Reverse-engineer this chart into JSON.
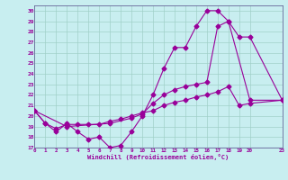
{
  "xlabel": "Windchill (Refroidissement éolien,°C)",
  "bg_color": "#c8eef0",
  "grid_color": "#a0d0c8",
  "line_color": "#990099",
  "xlim": [
    0,
    23
  ],
  "ylim": [
    17,
    30.5
  ],
  "xticks": [
    0,
    1,
    2,
    3,
    4,
    5,
    6,
    7,
    8,
    9,
    10,
    11,
    12,
    13,
    14,
    15,
    16,
    17,
    18,
    19,
    20,
    23
  ],
  "yticks": [
    17,
    18,
    19,
    20,
    21,
    22,
    23,
    24,
    25,
    26,
    27,
    28,
    29,
    30
  ],
  "line1_x": [
    0,
    1,
    2,
    3,
    4,
    5,
    6,
    7,
    8,
    9,
    10,
    11,
    12,
    13,
    14,
    15,
    16,
    17,
    18,
    19,
    20,
    23
  ],
  "line1_y": [
    20.5,
    19.3,
    18.5,
    19.3,
    18.5,
    17.8,
    18.0,
    17.0,
    17.2,
    18.5,
    20.0,
    22.0,
    24.5,
    26.5,
    26.5,
    28.5,
    30.0,
    30.0,
    29.0,
    27.5,
    27.5,
    21.5
  ],
  "line2_x": [
    0,
    1,
    2,
    3,
    4,
    5,
    6,
    7,
    8,
    9,
    10,
    11,
    12,
    13,
    14,
    15,
    16,
    17,
    18,
    19,
    20,
    23
  ],
  "line2_y": [
    20.5,
    19.3,
    18.8,
    19.2,
    19.2,
    19.2,
    19.2,
    19.5,
    19.7,
    20.0,
    20.3,
    20.5,
    21.0,
    21.3,
    21.5,
    21.8,
    22.0,
    22.3,
    22.8,
    21.0,
    21.2,
    21.5
  ],
  "line3_x": [
    0,
    3,
    7,
    9,
    10,
    11,
    12,
    13,
    14,
    15,
    16,
    17,
    18,
    20,
    23
  ],
  "line3_y": [
    20.5,
    19.0,
    19.3,
    19.8,
    20.2,
    21.2,
    22.0,
    22.5,
    22.8,
    23.0,
    23.2,
    28.5,
    29.0,
    21.5,
    21.5
  ]
}
